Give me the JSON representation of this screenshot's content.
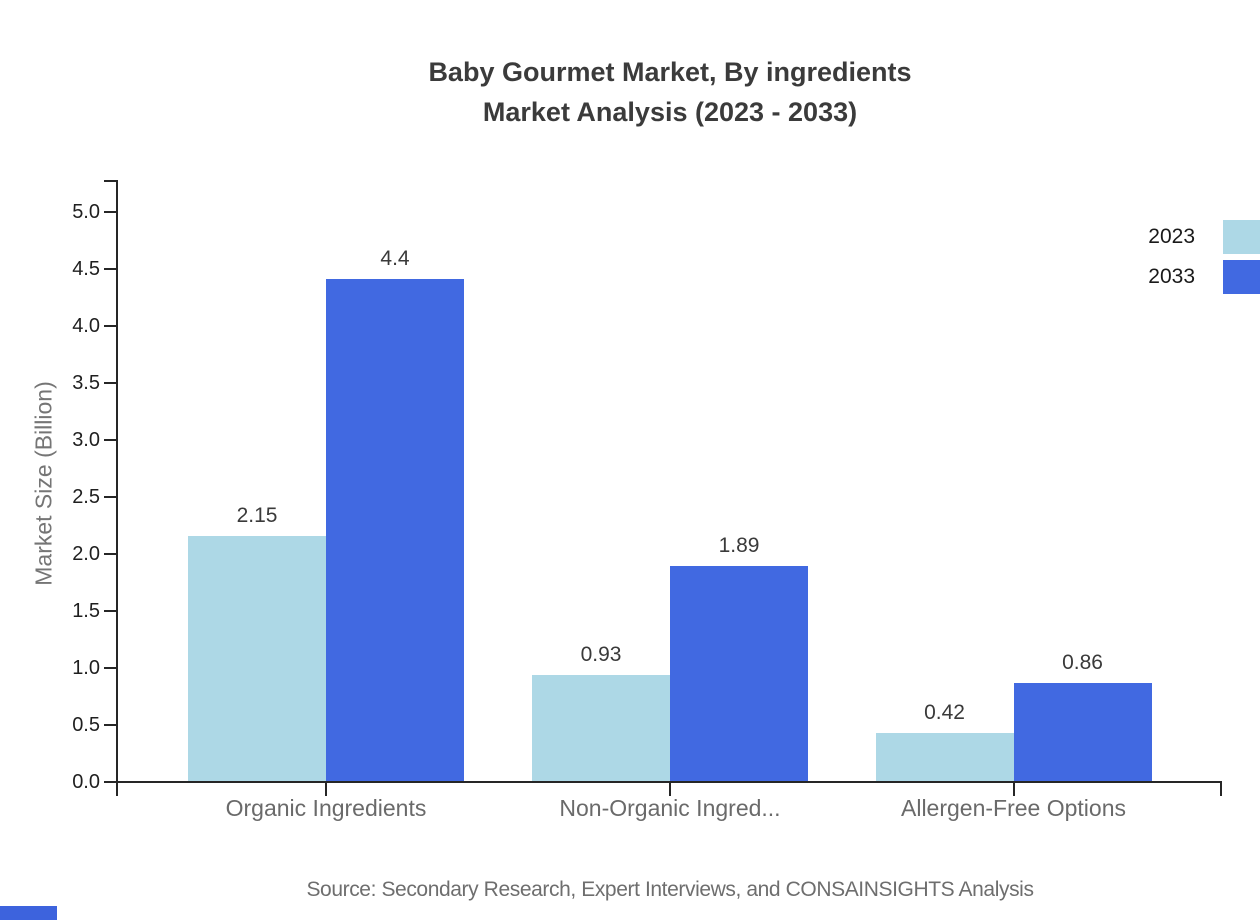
{
  "title": {
    "line1": "Baby Gourmet Market, By ingredients",
    "line2": "Market Analysis (2023 - 2033)"
  },
  "chart_data": {
    "type": "bar",
    "title": "Baby Gourmet Market, By ingredients Market Analysis (2023 - 2033)",
    "categories": [
      "Organic Ingredients",
      "Non-Organic Ingred...",
      "Allergen-Free Options"
    ],
    "series": [
      {
        "name": "2023",
        "color": "#ADD8E6",
        "values": [
          2.15,
          0.93,
          0.42
        ]
      },
      {
        "name": "2033",
        "color": "#4169E1",
        "values": [
          4.4,
          1.89,
          0.86
        ]
      }
    ],
    "xlabel": "",
    "ylabel": "Market Size (Billion)",
    "ylim": [
      0,
      5
    ],
    "ytick_step": 0.5,
    "yticks": [
      "0.0",
      "0.5",
      "1.0",
      "1.5",
      "2.0",
      "2.5",
      "3.0",
      "3.5",
      "4.0",
      "4.5",
      "5.0"
    ],
    "grid": false,
    "legend_position": "top-right",
    "value_labels_shown": true
  },
  "source": {
    "text": "Source: Secondary Research, Expert Interviews, and CONSAINSIGHTS Analysis"
  },
  "colors": {
    "series_2023": "#ADD8E6",
    "series_2033": "#4169E1",
    "axis": "#262626",
    "title_text": "#3b3b3b",
    "value_label_text": "#3a3a3a",
    "category_text": "#6a6a6a",
    "muted_text": "#757575",
    "source_text": "#6e6e6e",
    "brand_blue": "#3D63DD"
  }
}
